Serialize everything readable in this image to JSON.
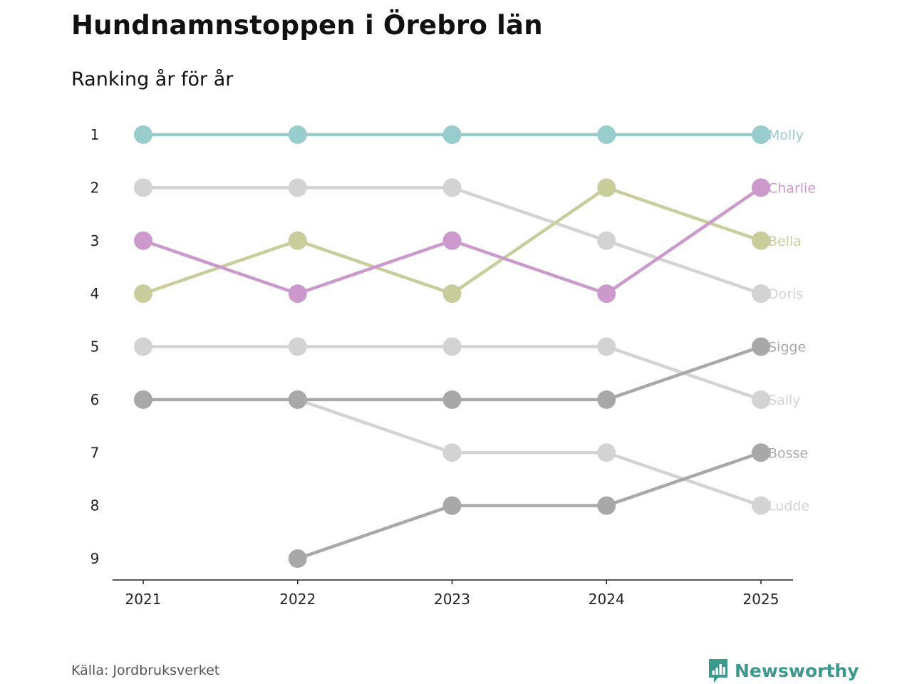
{
  "header": {
    "title": "Hundnamnstoppen i Örebro län",
    "subtitle": "Ranking år för år"
  },
  "footer": {
    "source": "Källa: Jordbruksverket",
    "brand": "Newsworthy",
    "brand_icon": "bar-chart-bubble-icon",
    "brand_color": "#3b9a8d"
  },
  "chart_data": {
    "type": "line",
    "title": "Hundnamnstoppen i Örebro län",
    "subtitle": "Ranking år för år",
    "xlabel": "",
    "ylabel": "",
    "categories": [
      "2021",
      "2022",
      "2023",
      "2024",
      "2025"
    ],
    "y_ticks": [
      "1",
      "2",
      "3",
      "4",
      "5",
      "6",
      "7",
      "8",
      "9"
    ],
    "ylim": [
      1,
      9
    ],
    "y_inverted": true,
    "grid": false,
    "series": [
      {
        "name": "Ludde",
        "color": "#d3d3d3",
        "values": [
          null,
          6,
          7,
          7,
          8
        ]
      },
      {
        "name": "Sally",
        "color": "#d3d3d3",
        "values": [
          5,
          5,
          5,
          5,
          6
        ]
      },
      {
        "name": "Doris",
        "color": "#d3d3d3",
        "values": [
          2,
          2,
          2,
          3,
          4
        ]
      },
      {
        "name": "Bosse",
        "color": "#a8a8a8",
        "values": [
          null,
          9,
          8,
          8,
          7
        ]
      },
      {
        "name": "Sigge",
        "color": "#a8a8a8",
        "values": [
          6,
          6,
          6,
          6,
          5
        ]
      },
      {
        "name": "Bella",
        "color": "#c9cd9b",
        "values": [
          4,
          3,
          4,
          2,
          3
        ]
      },
      {
        "name": "Charlie",
        "color": "#cc99cc",
        "values": [
          3,
          4,
          3,
          4,
          2
        ]
      },
      {
        "name": "Molly",
        "color": "#99cccc",
        "values": [
          1,
          1,
          1,
          1,
          1
        ]
      }
    ]
  }
}
